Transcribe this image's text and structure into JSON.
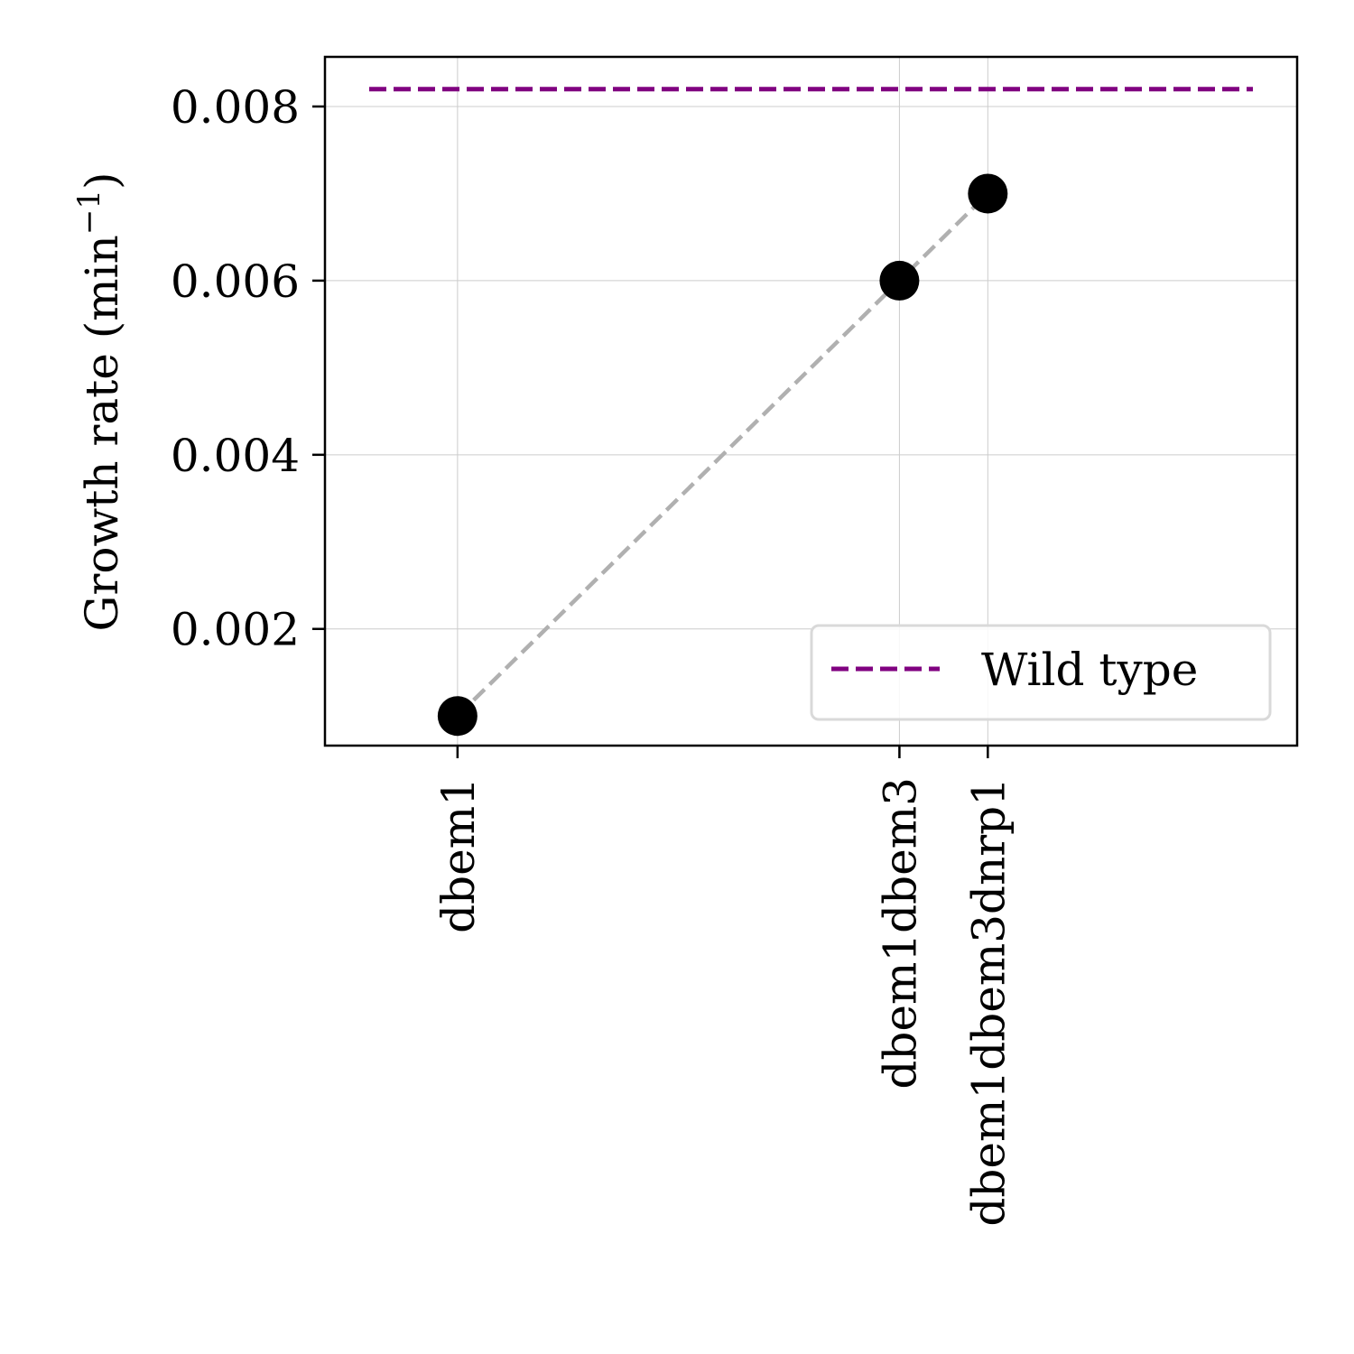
{
  "chart_data": {
    "type": "line",
    "categories": [
      "dbem1",
      "dbem1dbem3",
      "dbem1dbem3dnrp1"
    ],
    "x": [
      1,
      6,
      7
    ],
    "series": [
      {
        "values": [
          0.001,
          0.006,
          0.007
        ],
        "color": "#000000",
        "line_color": "#b0b0b0",
        "line_style": "dashed",
        "marker": "circle"
      }
    ],
    "reference_lines": [
      {
        "name": "Wild type",
        "value": 0.0082,
        "color": "#800080",
        "line_style": "dashed"
      }
    ],
    "xlabel": "",
    "ylabel_main": "Growth rate (min",
    "ylabel_sup": "−1",
    "ylabel_end": ")",
    "yticks": [
      0.002,
      0.004,
      0.006,
      0.008
    ],
    "ytick_labels": [
      "0.002",
      "0.004",
      "0.006",
      "0.008"
    ],
    "xlim": [
      -0.5,
      10.5
    ],
    "ylim": [
      0.00066,
      0.00857
    ],
    "grid": true,
    "legend": {
      "entries": [
        "Wild type"
      ],
      "position": "lower-right"
    }
  }
}
